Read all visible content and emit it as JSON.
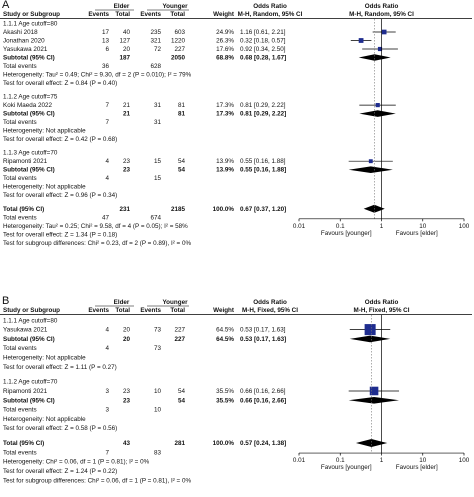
{
  "chart_data": [
    {
      "type": "forest",
      "panel": "A",
      "group_headers": {
        "left": "Elder",
        "right": "Younger"
      },
      "columns": [
        "Study or Subgroup",
        "Events",
        "Total",
        "Events",
        "Total",
        "Weight",
        "Odds Ratio",
        "M-H, Random, 95% CI",
        "Odds Ratio",
        "M-H, Random, 95% CI"
      ],
      "subgroups": [
        {
          "title": "1.1.1 Age cutoff=80",
          "studies": [
            {
              "name": "Akashi 2018",
              "e1": "17",
              "n1": "40",
              "e2": "235",
              "n2": "603",
              "weight": "24.9%",
              "ci_text": "1.16 [0.61, 2.21]",
              "or": 1.16,
              "lo": 0.61,
              "hi": 2.21
            },
            {
              "name": "Jonathan 2020",
              "e1": "13",
              "n1": "127",
              "e2": "321",
              "n2": "1220",
              "weight": "26.3%",
              "ci_text": "0.32 [0.18, 0.57]",
              "or": 0.32,
              "lo": 0.18,
              "hi": 0.57
            },
            {
              "name": "Yasukawa 2021",
              "e1": "6",
              "n1": "20",
              "e2": "72",
              "n2": "227",
              "weight": "17.6%",
              "ci_text": "0.92 [0.34, 2.50]",
              "or": 0.92,
              "lo": 0.34,
              "hi": 2.5
            }
          ],
          "subtotal": {
            "label": "Subtotal (95% CI)",
            "n1": "187",
            "n2": "2050",
            "weight": "68.8%",
            "ci_text": "0.68 [0.28, 1.67]",
            "or": 0.68,
            "lo": 0.28,
            "hi": 1.67
          },
          "total_events": {
            "label": "Total events",
            "e1": "36",
            "e2": "628"
          },
          "heterogeneity": "Heterogeneity: Tau² = 0.49; Chi² = 9.30, df = 2 (P = 0.010); I² = 79%",
          "overall_test": "Test for overall effect: Z = 0.84 (P = 0.40)"
        },
        {
          "title": "1.1.2 Age cutoff=75",
          "studies": [
            {
              "name": "Koki Maeda 2022",
              "e1": "7",
              "n1": "21",
              "e2": "31",
              "n2": "81",
              "weight": "17.3%",
              "ci_text": "0.81 [0.29, 2.22]",
              "or": 0.81,
              "lo": 0.29,
              "hi": 2.22
            }
          ],
          "subtotal": {
            "label": "Subtotal (95% CI)",
            "n1": "21",
            "n2": "81",
            "weight": "17.3%",
            "ci_text": "0.81 [0.29, 2.22]",
            "or": 0.81,
            "lo": 0.29,
            "hi": 2.22
          },
          "total_events": {
            "label": "Total events",
            "e1": "7",
            "e2": "31"
          },
          "heterogeneity": "Heterogeneity: Not applicable",
          "overall_test": "Test for overall effect: Z = 0.42 (P = 0.68)"
        },
        {
          "title": "1.1.3 Age cutoff=70",
          "studies": [
            {
              "name": "Ripamonti  2021",
              "e1": "4",
              "n1": "23",
              "e2": "15",
              "n2": "54",
              "weight": "13.9%",
              "ci_text": "0.55 [0.16, 1.88]",
              "or": 0.55,
              "lo": 0.16,
              "hi": 1.88
            }
          ],
          "subtotal": {
            "label": "Subtotal (95% CI)",
            "n1": "23",
            "n2": "54",
            "weight": "13.9%",
            "ci_text": "0.55 [0.16, 1.88]",
            "or": 0.55,
            "lo": 0.16,
            "hi": 1.88
          },
          "total_events": {
            "label": "Total events",
            "e1": "4",
            "e2": "15"
          },
          "heterogeneity": "Heterogeneity: Not applicable",
          "overall_test": "Test for overall effect: Z = 0.96 (P = 0.34)"
        }
      ],
      "total": {
        "label": "Total (95% CI)",
        "n1": "231",
        "n2": "2185",
        "weight": "100.0%",
        "ci_text": "0.67 [0.37, 1.20]",
        "or": 0.67,
        "lo": 0.37,
        "hi": 1.2
      },
      "total_events": {
        "label": "Total events",
        "e1": "47",
        "e2": "674"
      },
      "heterogeneity": "Heterogeneity: Tau² = 0.25; Chi² = 9.58, df = 4 (P = 0.05); I² = 58%",
      "overall_test": "Test for overall effect: Z = 1.34 (P = 0.18)",
      "subgroup_test": "Test for subgroup differences: Chi² = 0.23, df = 2 (P = 0.89), I² = 0%",
      "axis": {
        "scale": "log",
        "ticks": [
          "0.01",
          "0.1",
          "1",
          "10",
          "100"
        ],
        "xlim": [
          0.01,
          100
        ],
        "left_label": "Favours [younger]",
        "right_label": "Favours [elder]"
      }
    },
    {
      "type": "forest",
      "panel": "B",
      "group_headers": {
        "left": "Elder",
        "right": "Younger"
      },
      "columns": [
        "Study or Subgroup",
        "Events",
        "Total",
        "Events",
        "Total",
        "Weight",
        "Odds Ratio",
        "M-H, Fixed, 95% CI",
        "Odds Ratio",
        "M-H, Fixed, 95% CI"
      ],
      "subgroups": [
        {
          "title": "1.1.1 Age cutoff=80",
          "studies": [
            {
              "name": "Yasukawa 2021",
              "e1": "4",
              "n1": "20",
              "e2": "73",
              "n2": "227",
              "weight": "64.5%",
              "ci_text": "0.53 [0.17, 1.63]",
              "or": 0.53,
              "lo": 0.17,
              "hi": 1.63
            }
          ],
          "subtotal": {
            "label": "Subtotal (95% CI)",
            "n1": "20",
            "n2": "227",
            "weight": "64.5%",
            "ci_text": "0.53 [0.17, 1.63]",
            "or": 0.53,
            "lo": 0.17,
            "hi": 1.63
          },
          "total_events": {
            "label": "Total events",
            "e1": "4",
            "e2": "73"
          },
          "heterogeneity": "Heterogeneity: Not applicable",
          "overall_test": "Test for overall effect: Z = 1.11 (P = 0.27)"
        },
        {
          "title": "1.1.2 Age cutoff=70",
          "studies": [
            {
              "name": "Ripamonti 2021",
              "e1": "3",
              "n1": "23",
              "e2": "10",
              "n2": "54",
              "weight": "35.5%",
              "ci_text": "0.66 [0.16, 2.66]",
              "or": 0.66,
              "lo": 0.16,
              "hi": 2.66
            }
          ],
          "subtotal": {
            "label": "Subtotal (95% CI)",
            "n1": "23",
            "n2": "54",
            "weight": "35.5%",
            "ci_text": "0.66 [0.16, 2.66]",
            "or": 0.66,
            "lo": 0.16,
            "hi": 2.66
          },
          "total_events": {
            "label": "Total events",
            "e1": "3",
            "e2": "10"
          },
          "heterogeneity": "Heterogeneity: Not applicable",
          "overall_test": "Test for overall effect: Z = 0.58 (P = 0.56)"
        }
      ],
      "total": {
        "label": "Total (95% CI)",
        "n1": "43",
        "n2": "281",
        "weight": "100.0%",
        "ci_text": "0.57 [0.24, 1.38]",
        "or": 0.57,
        "lo": 0.24,
        "hi": 1.38
      },
      "total_events": {
        "label": "Total events",
        "e1": "7",
        "e2": "83"
      },
      "heterogeneity": "Heterogeneity: Chi² = 0.06, df = 1 (P = 0.81); I² = 0%",
      "overall_test": "Test for overall effect: Z = 1.24 (P = 0.22)",
      "subgroup_test": "Test for subgroup differences: Chi² = 0.06, df = 1 (P = 0.81), I² = 0%",
      "axis": {
        "scale": "log",
        "ticks": [
          "0.01",
          "0.1",
          "1",
          "10",
          "100"
        ],
        "xlim": [
          0.01,
          100
        ],
        "left_label": "Favours [younger]",
        "right_label": "Favours [elder]"
      }
    }
  ],
  "colors": {
    "study_marker": "#1f2d8f",
    "summary": "#000000",
    "grid": "#777777"
  }
}
